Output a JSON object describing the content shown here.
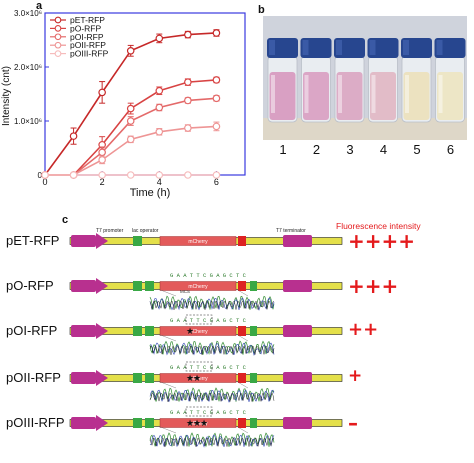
{
  "panels": {
    "a": "a",
    "b": "b",
    "c": "c"
  },
  "chart_data": {
    "type": "line",
    "xlabel": "Time (h)",
    "ylabel": "Intensity (cnt)",
    "xlim": [
      0,
      7
    ],
    "ylim": [
      0,
      3000000
    ],
    "xticks": [
      "0",
      "2",
      "4",
      "6"
    ],
    "yticks": [
      "0",
      "1.0×10⁶",
      "2.0×10⁶",
      "3.0×10⁶"
    ],
    "x": [
      0,
      1,
      2,
      3,
      4,
      5,
      6
    ],
    "legend_position": "top-left",
    "series": [
      {
        "name": "pET-RFP",
        "color": "#c62828",
        "values": [
          0,
          720000,
          1530000,
          2300000,
          2530000,
          2600000,
          2630000
        ],
        "errors": [
          0,
          150000,
          200000,
          100000,
          80000,
          60000,
          60000
        ]
      },
      {
        "name": "pO-RFP",
        "color": "#d84343",
        "values": [
          0,
          0,
          560000,
          1230000,
          1560000,
          1720000,
          1760000
        ],
        "errors": [
          0,
          0,
          150000,
          100000,
          70000,
          60000,
          50000
        ]
      },
      {
        "name": "pOI-RFP",
        "color": "#e46a6a",
        "values": [
          0,
          0,
          420000,
          1000000,
          1250000,
          1380000,
          1420000
        ],
        "errors": [
          0,
          0,
          100000,
          80000,
          60000,
          50000,
          50000
        ]
      },
      {
        "name": "pOII-RFP",
        "color": "#ee9595",
        "values": [
          0,
          0,
          280000,
          660000,
          800000,
          870000,
          900000
        ],
        "errors": [
          0,
          0,
          70000,
          60000,
          60000,
          60000,
          80000
        ]
      },
      {
        "name": "pOIII-RFP",
        "color": "#f6bcbc",
        "values": [
          0,
          0,
          0,
          0,
          0,
          0,
          0
        ],
        "errors": [
          0,
          0,
          0,
          0,
          0,
          0,
          0
        ]
      }
    ]
  },
  "photo": {
    "vial_labels": [
      "1",
      "2",
      "3",
      "4",
      "5",
      "6"
    ],
    "liquid_colors": [
      "#d9a0c3",
      "#dba6c6",
      "#dcacc6",
      "#e2bcc8",
      "#ece2c0",
      "#ede6c6"
    ]
  },
  "schematic": {
    "header": "Fluorescence intensity",
    "rows": [
      {
        "label": "pET-RFP",
        "intensity": "++++"
      },
      {
        "label": "pO-RFP",
        "intensity": "+++"
      },
      {
        "label": "pOI-RFP",
        "intensity": "++"
      },
      {
        "label": "pOII-RFP",
        "intensity": "+"
      },
      {
        "label": "pOIII-RFP",
        "intensity": "–"
      }
    ],
    "labels": {
      "t7_promoter": "T7 promoter",
      "lac_operator": "lac operator",
      "t7_terminator": "T7 terminator",
      "mcherry": "mCherry",
      "mcs": "MCS",
      "seq": "G A A T T C G A G C T C"
    }
  }
}
